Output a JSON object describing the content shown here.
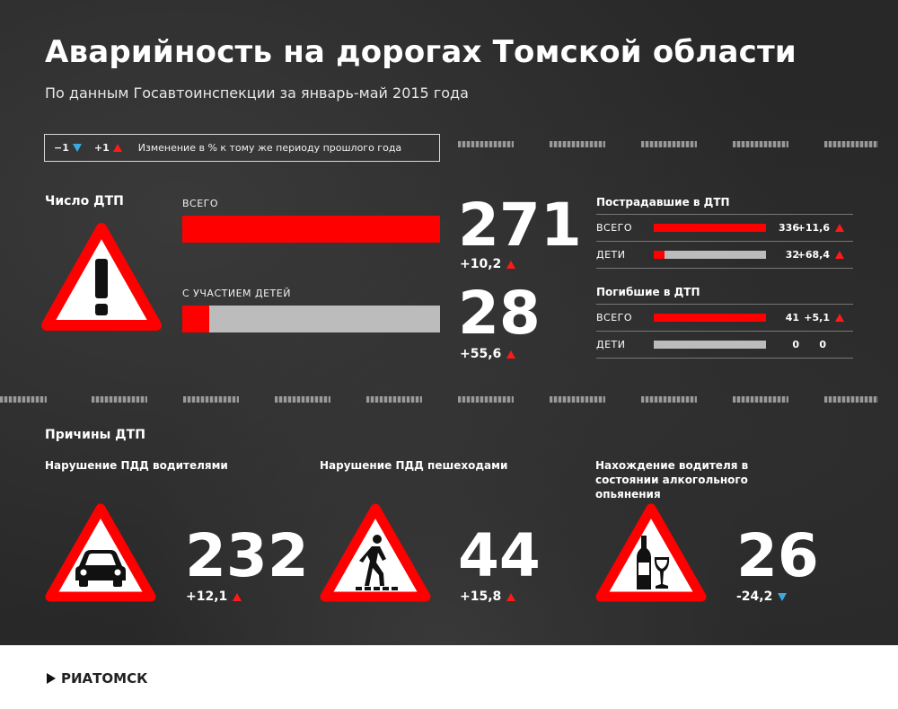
{
  "header": {
    "title": "Аварийность на дорогах Томской области",
    "subtitle": "По данным Госавтоинспекции за январь-май 2015 года"
  },
  "legend": {
    "down_label": "−1",
    "up_label": "+1",
    "text": "Изменение в % к тому же периоду прошлого года"
  },
  "accidents": {
    "heading": "Число ДТП",
    "total": {
      "label": "ВСЕГО",
      "value": "271",
      "delta": "+10,2",
      "fill": 1.0
    },
    "children": {
      "label": "С УЧАСТИЕМ ДЕТЕЙ",
      "value": "28",
      "delta": "+55,6",
      "fill": 0.103
    }
  },
  "injured": {
    "heading": "Пострадавшие в ДТП",
    "rows": [
      {
        "label": "ВСЕГО",
        "value": "336",
        "delta": "+11,6",
        "fill": 1.0,
        "arrow": "up"
      },
      {
        "label": "ДЕТИ",
        "value": "32",
        "delta": "+68,4",
        "fill": 0.095,
        "arrow": "up"
      }
    ]
  },
  "killed": {
    "heading": "Погибшие в ДТП",
    "rows": [
      {
        "label": "ВСЕГО",
        "value": "41",
        "delta": "+5,1",
        "fill": 1.0,
        "arrow": "up"
      },
      {
        "label": "ДЕТИ",
        "value": "0",
        "delta": "0",
        "fill": 0.0,
        "arrow": "none"
      }
    ]
  },
  "causes": {
    "heading": "Причины ДТП",
    "items": [
      {
        "title": "Нарушение ПДД водителями",
        "value": "232",
        "delta": "+12,1",
        "arrow": "up",
        "icon": "car-icon"
      },
      {
        "title": "Нарушение ПДД пешеходами",
        "value": "44",
        "delta": "+15,8",
        "arrow": "up",
        "icon": "pedestrian-icon"
      },
      {
        "title": "Нахождение водителя в состоянии алкогольного опьянения",
        "value": "26",
        "delta": "-24,2",
        "arrow": "down",
        "icon": "alcohol-icon"
      }
    ]
  },
  "footer": {
    "logo_text": "РИАТОМСК"
  },
  "colors": {
    "accent_red": "#ff0000",
    "down_blue": "#3aa9e0",
    "bar_grey": "#bcbcbc"
  }
}
